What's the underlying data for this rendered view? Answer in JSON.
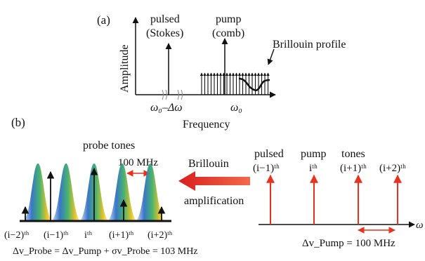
{
  "panel_a": {
    "label": "(a)",
    "y_axis_label": "Amplitude",
    "x_axis_label": "Frequency",
    "pulsed_label_line1": "pulsed",
    "pulsed_label_line2": "(Stokes)",
    "pump_label_line1": "pump",
    "pump_label_line2": "(comb)",
    "brillouin_profile_label": "Brillouin profile",
    "tick_pulsed": "ω₀–Δω",
    "tick_pump": "ω₀"
  },
  "panel_b": {
    "label": "(b)",
    "probe_tones_label": "probe tones",
    "probe_spacing_label": "100 MHz",
    "brillouin_label": "Brillouin",
    "amplification_label": "amplification",
    "pulsed_label": "pulsed",
    "pump_label": "pump",
    "tones_label": "tones",
    "pump_index_labels": [
      "(i−1)ᵗʰ",
      "iᵗʰ",
      "(i+1)ᵗʰ",
      "(i+2)ᵗʰ"
    ],
    "probe_index_labels": [
      "(i−2)ᵗʰ",
      "(i−1)ᵗʰ",
      "iᵗʰ",
      "(i+1)ᵗʰ",
      "(i+2)ᵗʰ"
    ],
    "pump_spacing_formula": "Δv_Pump = 100 MHz",
    "probe_spacing_formula": "Δv_Probe = Δv_Pump + σv_Probe = 103 MHz",
    "axis_symbol": "ω"
  },
  "colors": {
    "arrow_red": "#e8321e",
    "gain_blue": "#2f6fc4",
    "gain_yellow": "#e8c21e",
    "gain_green": "#3cae6a",
    "line_black": "#111111"
  }
}
